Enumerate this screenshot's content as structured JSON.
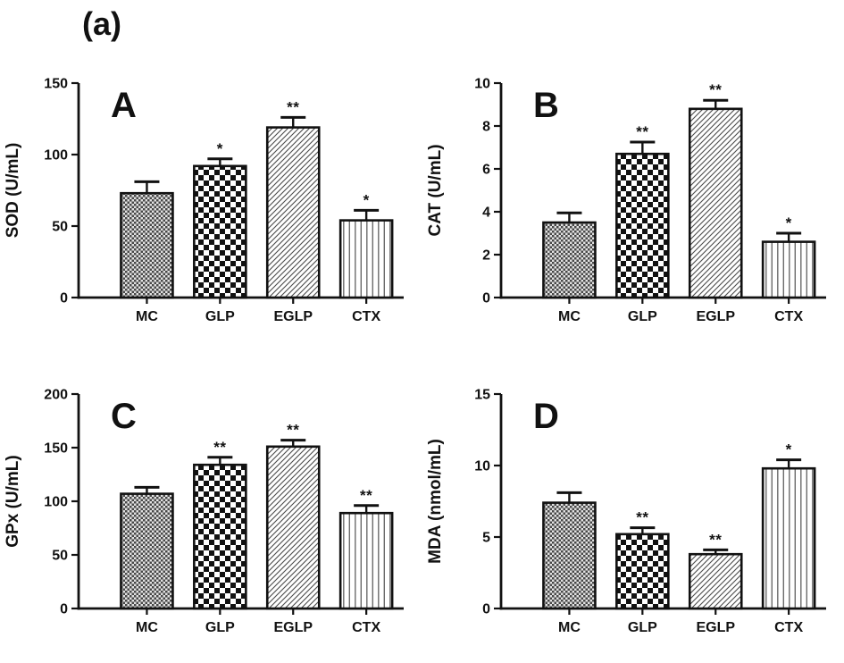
{
  "figure": {
    "label": "(a)"
  },
  "colors": {
    "ink": "#111111",
    "background": "#ffffff",
    "pattern_dark": "#474747",
    "pattern_light": "#e2e2e2",
    "hatch_gray": "#4a4a4a",
    "line_gray": "#6b6b6b"
  },
  "groups": [
    "MC",
    "GLP",
    "EGLP",
    "CTX"
  ],
  "bar_patterns": [
    "fine-checker",
    "checkerboard",
    "diagonal-hatch",
    "vertical-lines"
  ],
  "chart_data": [
    {
      "panel": "A",
      "type": "bar",
      "ylabel": "SOD (U/mL)",
      "categories": [
        "MC",
        "GLP",
        "EGLP",
        "CTX"
      ],
      "values": [
        73,
        92,
        119,
        54
      ],
      "errors": [
        8,
        5,
        7,
        7
      ],
      "significance": [
        "",
        "*",
        "**",
        "*"
      ],
      "ylim": [
        0,
        150
      ],
      "yticks": [
        0,
        50,
        100,
        150
      ],
      "grid": false,
      "legend": false
    },
    {
      "panel": "B",
      "type": "bar",
      "ylabel": "CAT (U/mL)",
      "categories": [
        "MC",
        "GLP",
        "EGLP",
        "CTX"
      ],
      "values": [
        3.5,
        6.7,
        8.8,
        2.6
      ],
      "errors": [
        0.45,
        0.55,
        0.4,
        0.4
      ],
      "significance": [
        "",
        "**",
        "**",
        "*"
      ],
      "ylim": [
        0,
        10
      ],
      "yticks": [
        0,
        2,
        4,
        6,
        8,
        10
      ],
      "grid": false,
      "legend": false
    },
    {
      "panel": "C",
      "type": "bar",
      "ylabel": "GPx (U/mL)",
      "categories": [
        "MC",
        "GLP",
        "EGLP",
        "CTX"
      ],
      "values": [
        107,
        134,
        151,
        89
      ],
      "errors": [
        6,
        7,
        6,
        7
      ],
      "significance": [
        "",
        "**",
        "**",
        "**"
      ],
      "ylim": [
        0,
        200
      ],
      "yticks": [
        0,
        50,
        100,
        150,
        200
      ],
      "grid": false,
      "legend": false
    },
    {
      "panel": "D",
      "type": "bar",
      "ylabel": "MDA (nmol/mL)",
      "categories": [
        "MC",
        "GLP",
        "EGLP",
        "CTX"
      ],
      "values": [
        7.4,
        5.2,
        3.8,
        9.8
      ],
      "errors": [
        0.7,
        0.45,
        0.3,
        0.6
      ],
      "significance": [
        "",
        "**",
        "**",
        "*"
      ],
      "ylim": [
        0,
        15
      ],
      "yticks": [
        0,
        5,
        10,
        15
      ],
      "grid": false,
      "legend": false
    }
  ]
}
